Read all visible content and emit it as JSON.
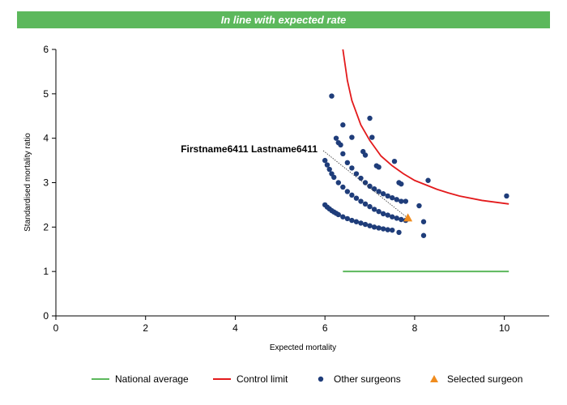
{
  "banner": {
    "title": "In line with expected rate"
  },
  "colors": {
    "banner": "#5cb85c",
    "national_average": "#5cb85c",
    "control_limit": "#e31a1c",
    "other_surgeons": "#1f3d7a",
    "selected_surgeon": "#f08c1e"
  },
  "chart_data": {
    "type": "scatter",
    "xlabel": "Expected mortality",
    "ylabel": "Standardised mortality ratio",
    "xlim": [
      0,
      11
    ],
    "ylim": [
      0,
      6
    ],
    "xticks": [
      0,
      2,
      4,
      6,
      8,
      10
    ],
    "yticks": [
      0,
      1,
      2,
      3,
      4,
      5,
      6
    ],
    "grid": false,
    "legend_position": "bottom",
    "series": [
      {
        "name": "National average",
        "type": "line",
        "x": [
          6.4,
          10.1
        ],
        "y": [
          1.0,
          1.0
        ]
      },
      {
        "name": "Control limit",
        "type": "line",
        "x": [
          6.4,
          6.5,
          6.6,
          6.8,
          7.0,
          7.25,
          7.5,
          7.75,
          8.0,
          8.25,
          8.5,
          8.75,
          9.0,
          9.5,
          10.1
        ],
        "y": [
          6.0,
          5.3,
          4.85,
          4.3,
          3.95,
          3.6,
          3.38,
          3.2,
          3.05,
          2.95,
          2.85,
          2.77,
          2.7,
          2.6,
          2.52
        ]
      },
      {
        "name": "Other surgeons",
        "type": "scatter",
        "x": [
          6.0,
          6.05,
          6.1,
          6.15,
          6.2,
          6.3,
          6.4,
          6.5,
          6.6,
          6.7,
          6.8,
          6.9,
          7.0,
          7.1,
          7.2,
          7.3,
          7.4,
          7.5,
          7.6,
          7.7,
          7.8,
          6.0,
          6.05,
          6.1,
          6.15,
          6.2,
          6.25,
          6.3,
          6.4,
          6.5,
          6.6,
          6.7,
          6.8,
          6.9,
          7.0,
          7.1,
          7.2,
          7.3,
          7.4,
          7.5,
          6.5,
          6.6,
          6.7,
          6.8,
          6.9,
          7.0,
          7.1,
          7.2,
          7.3,
          7.4,
          7.5,
          7.6,
          7.7,
          6.15,
          6.4,
          6.25,
          6.3,
          6.35,
          6.4,
          6.6,
          6.85,
          6.9,
          7.05,
          7.0,
          7.15,
          7.2,
          7.55,
          7.65,
          7.7,
          7.8,
          8.3,
          8.1,
          8.2,
          8.2,
          7.65,
          10.05
        ],
        "y": [
          3.5,
          3.4,
          3.3,
          3.2,
          3.12,
          3.0,
          2.9,
          2.8,
          2.72,
          2.65,
          2.58,
          2.52,
          2.46,
          2.4,
          2.35,
          2.3,
          2.27,
          2.23,
          2.2,
          2.17,
          2.15,
          2.5,
          2.45,
          2.41,
          2.37,
          2.34,
          2.31,
          2.28,
          2.23,
          2.19,
          2.15,
          2.12,
          2.09,
          2.06,
          2.03,
          2.0,
          1.98,
          1.96,
          1.94,
          1.93,
          3.45,
          3.33,
          3.2,
          3.1,
          3.0,
          2.92,
          2.86,
          2.8,
          2.75,
          2.7,
          2.66,
          2.62,
          2.58,
          4.95,
          4.3,
          4.0,
          3.9,
          3.85,
          3.65,
          4.02,
          3.7,
          3.62,
          4.02,
          4.45,
          3.38,
          3.35,
          3.48,
          3.0,
          2.97,
          2.58,
          3.05,
          2.48,
          2.12,
          1.81,
          1.88,
          2.7
        ]
      },
      {
        "name": "Selected surgeon",
        "type": "scatter",
        "x": [
          7.85
        ],
        "y": [
          2.2
        ]
      }
    ],
    "annotations": [
      {
        "text": "Firstname6411 Lastname6411",
        "x": 7.85,
        "y": 2.2
      }
    ]
  }
}
